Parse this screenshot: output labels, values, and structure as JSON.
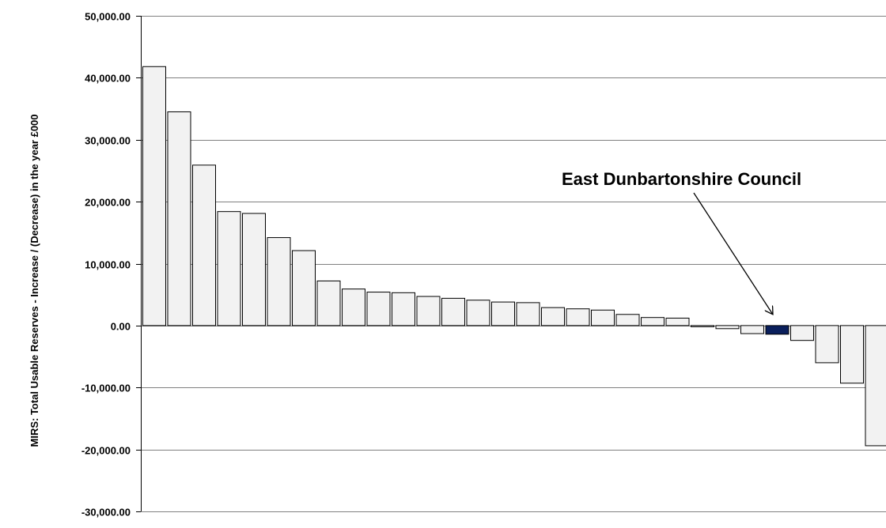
{
  "chart_data": {
    "type": "bar",
    "title": "",
    "xlabel": "",
    "ylabel": "MIRS: Total Usable Reserves - Increase / (Decrease) in the year £000",
    "ylim": [
      -30000,
      50000
    ],
    "yticks": [
      50000,
      40000,
      30000,
      20000,
      10000,
      0,
      -10000,
      -20000,
      -30000
    ],
    "ytick_labels": [
      "50,000.00",
      "40,000.00",
      "30,000.00",
      "20,000.00",
      "10,000.00",
      "0.00",
      "-10,000.00",
      "-20,000.00",
      "-30,000.00"
    ],
    "grid": true,
    "values": [
      41800,
      34500,
      25900,
      18400,
      18100,
      14200,
      12100,
      7200,
      5900,
      5400,
      5300,
      4700,
      4400,
      4100,
      3800,
      3700,
      2900,
      2700,
      2500,
      1800,
      1300,
      1200,
      -100,
      -500,
      -1300,
      -1400,
      -2400,
      -6000,
      -9300,
      -19400
    ],
    "highlight_index": 25,
    "colors": {
      "bar_fill": "#f2f2f2",
      "bar_stroke": "#000000",
      "highlight_fill": "#0a1f5c",
      "grid": "#808080"
    },
    "annotation": {
      "text": "East Dunbartonshire Council",
      "target_index": 25
    }
  }
}
